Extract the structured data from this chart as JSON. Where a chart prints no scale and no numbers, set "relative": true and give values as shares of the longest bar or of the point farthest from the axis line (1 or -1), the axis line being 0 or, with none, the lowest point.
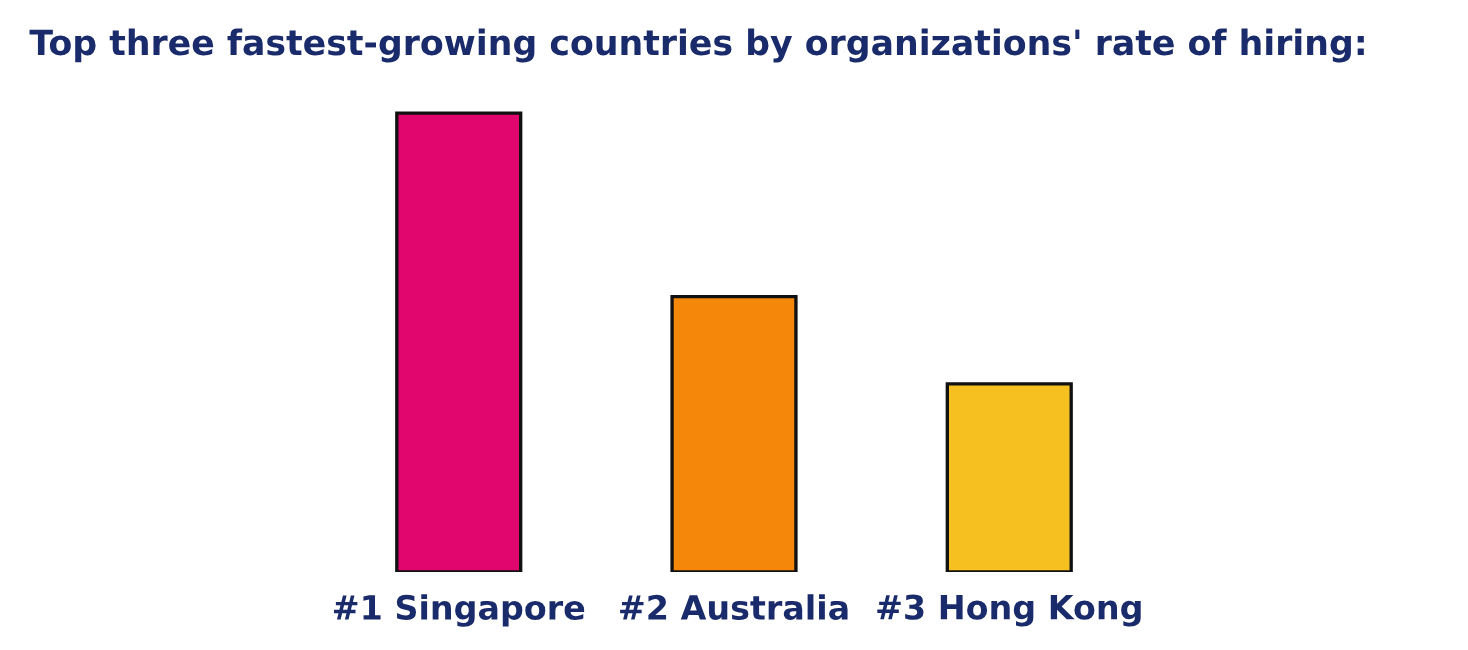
{
  "chart_data": {
    "type": "bar",
    "title": "Top three fastest-growing countries by organizations' rate of hiring:",
    "categories": [
      "#1 Singapore",
      "#2 Australia",
      "#3 Hong Kong"
    ],
    "values": [
      1,
      0.6,
      0.41
    ],
    "colors": [
      "#e0066e",
      "#f5870a",
      "#f5c020"
    ],
    "relative": true,
    "grid": false,
    "legend": false
  }
}
